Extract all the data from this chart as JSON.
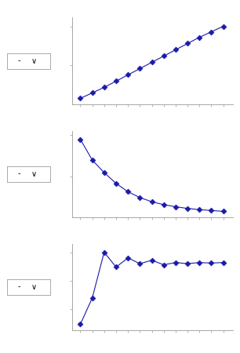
{
  "graph1": {
    "x": [
      1,
      2,
      3,
      4,
      5,
      6,
      7,
      8,
      9,
      10,
      11,
      12,
      13
    ],
    "y": [
      0.8,
      1.5,
      2.2,
      3.0,
      3.8,
      4.6,
      5.4,
      6.2,
      7.0,
      7.8,
      8.6,
      9.3,
      10.0
    ]
  },
  "graph2": {
    "x": [
      1,
      2,
      3,
      4,
      5,
      6,
      7,
      8,
      9,
      10,
      11,
      12,
      13
    ],
    "y": [
      9.5,
      7.0,
      5.5,
      4.2,
      3.2,
      2.5,
      2.0,
      1.65,
      1.4,
      1.2,
      1.05,
      0.95,
      0.85
    ]
  },
  "graph3": {
    "x": [
      1,
      2,
      3,
      4,
      5,
      6,
      7,
      8,
      9,
      10,
      11,
      12,
      13
    ],
    "y": [
      1.2,
      3.5,
      7.5,
      6.2,
      7.0,
      6.5,
      6.8,
      6.4,
      6.6,
      6.5,
      6.6,
      6.55,
      6.6
    ]
  },
  "line_color": "#1a1aaa",
  "marker_color": "#1a1aaa",
  "bg_color": "#ffffff",
  "axis_color": "#999999",
  "markersize": 3.5,
  "linewidth": 0.8
}
